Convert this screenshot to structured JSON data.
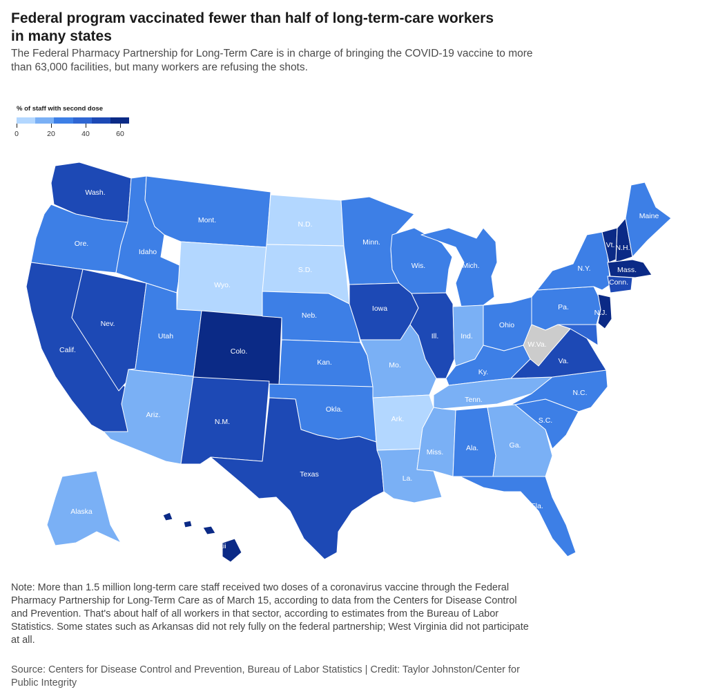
{
  "header": {
    "title": "Federal program vaccinated fewer than half of long-term-care workers in many states",
    "subtitle": "The Federal Pharmacy Partnership for Long-Term Care is in charge of bringing the COVID-19 vaccine to more than 63,000 facilities, but many workers are refusing the shots."
  },
  "legend": {
    "title": "% of staff with second dose",
    "ticks": [
      "0",
      "20",
      "40",
      "60"
    ],
    "min": 0,
    "max": 65,
    "colors": [
      "#b3d7ff",
      "#7ab0f5",
      "#3d7fe6",
      "#2f66d3",
      "#1d49b5",
      "#0b2a86"
    ]
  },
  "map": {
    "colors": {
      "c1": "#b3d7ff",
      "c2": "#7ab0f5",
      "c3": "#3d7fe6",
      "c4": "#2f66d3",
      "c5": "#1d49b5",
      "c6": "#0b2a86",
      "none": "#cccccc",
      "border": "#ffffff"
    },
    "labels": {
      "wa": "Wash.",
      "or": "Ore.",
      "ca": "Calif.",
      "nv": "Nev.",
      "id": "Idaho",
      "mt": "Mont.",
      "wy": "Wyo.",
      "ut": "Utah",
      "az": "Ariz.",
      "co": "Colo.",
      "nm": "N.M.",
      "nd": "N.D.",
      "sd": "S.D.",
      "ne": "Neb.",
      "ks": "Kan.",
      "ok": "Okla.",
      "tx": "Texas",
      "mn": "Minn.",
      "ia": "Iowa",
      "mo": "Mo.",
      "ar": "Ark.",
      "la": "La.",
      "wi": "Wis.",
      "il": "Ill.",
      "mi": "Mich.",
      "in": "Ind.",
      "oh": "Ohio",
      "ky": "Ky.",
      "tn": "Tenn.",
      "ms": "Miss.",
      "al": "Ala.",
      "ga": "Ga.",
      "fl": "Fla.",
      "sc": "S.C.",
      "nc": "N.C.",
      "va": "Va.",
      "wv": "W.Va.",
      "pa": "Pa.",
      "ny": "N.Y.",
      "nj": "N.J.",
      "vt": "Vt.",
      "nh": "N.H.",
      "ma": "Mass.",
      "ct": "Conn.",
      "me": "Maine",
      "ak": "Alaska",
      "hi": "Hawaii"
    }
  },
  "note": "Note: More than 1.5 million long-term care staff received two doses of a coronavirus vaccine through the Federal Pharmacy Partnership for Long-Term Care as of March 15, according to data from the Centers for Disease Control and Prevention. That's about half of all workers in that sector, according to estimates from the Bureau of Labor Statistics. Some states such as Arkansas did not rely fully on the federal partnership; West Virginia did not participate at all.",
  "source": "Source: Centers for Disease Control and Prevention, Bureau of Labor Statistics | Credit: Taylor Johnston/Center for Public Integrity"
}
